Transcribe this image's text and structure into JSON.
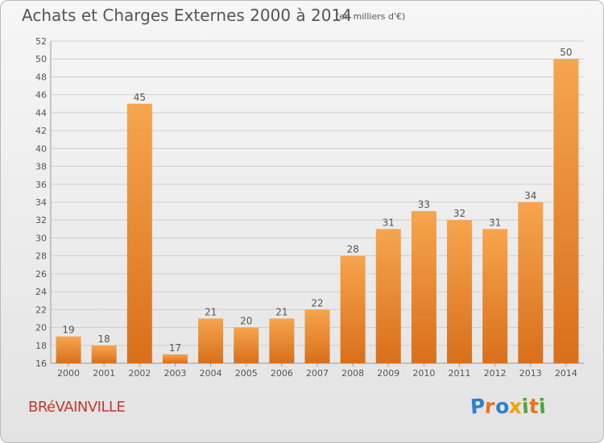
{
  "title": "Achats et Charges Externes 2000 à 2014",
  "subtitle": "(en milliers d'€)",
  "commune": "BRéVAINVILLE",
  "logo": {
    "text": "Proxiti",
    "letters": [
      {
        "ch": "P",
        "color": "#2a7fd4"
      },
      {
        "ch": "r",
        "color": "#e8731a"
      },
      {
        "ch": "o",
        "color": "#2a7fd4"
      },
      {
        "ch": "x",
        "color": "#f0a300"
      },
      {
        "ch": "i",
        "color": "#4aa83a"
      },
      {
        "ch": "t",
        "color": "#e8731a"
      },
      {
        "ch": "i",
        "color": "#4aa83a"
      }
    ]
  },
  "colors": {
    "bar_top": "#f6a54e",
    "bar_bottom": "#d96f1a",
    "grid": "#cfcfcf",
    "text": "#555555"
  },
  "chart_data": {
    "type": "bar",
    "categories": [
      "2000",
      "2001",
      "2002",
      "2003",
      "2004",
      "2005",
      "2006",
      "2007",
      "2008",
      "2009",
      "2010",
      "2011",
      "2012",
      "2013",
      "2014"
    ],
    "values": [
      19,
      18,
      45,
      17,
      21,
      20,
      21,
      22,
      28,
      31,
      33,
      32,
      31,
      34,
      50
    ],
    "ylim": [
      16,
      52
    ],
    "yticks": [
      16,
      18,
      20,
      22,
      24,
      26,
      28,
      30,
      32,
      34,
      36,
      38,
      40,
      42,
      44,
      46,
      48,
      50,
      52
    ],
    "grid": true,
    "data_labels": true
  }
}
